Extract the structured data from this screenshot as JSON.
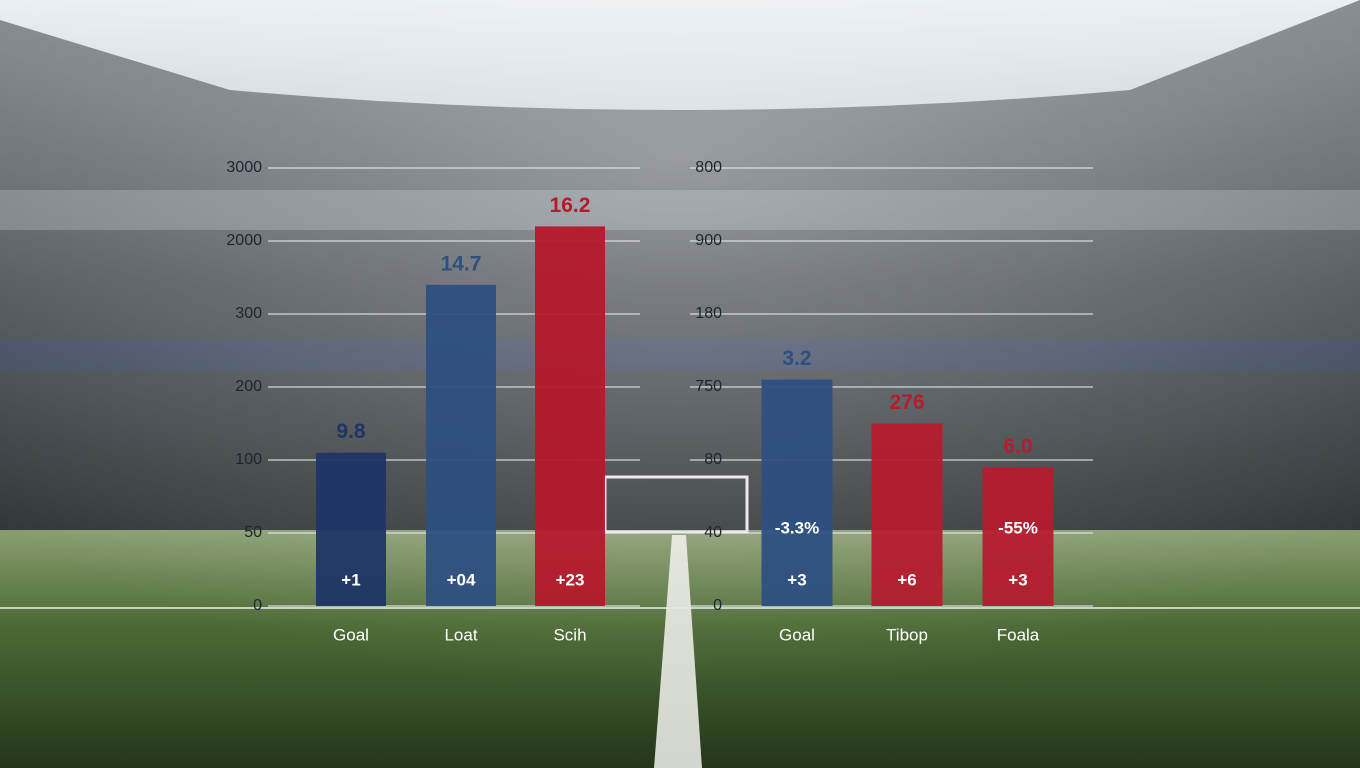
{
  "chart_data": [
    {
      "type": "bar",
      "categories": [
        "Goal",
        "Loat",
        "Scih"
      ],
      "values": [
        2.1,
        4.4,
        5.2
      ],
      "colors": [
        "#1f3566",
        "#2e4f82",
        "#b5192b"
      ],
      "top_labels": [
        "9.8",
        "14.7",
        "16.2"
      ],
      "inner_labels": [
        "+1",
        "+04",
        "+23"
      ],
      "ylim": [
        0,
        6
      ],
      "yticks": [
        {
          "value": 0,
          "label": "0"
        },
        {
          "value": 1,
          "label": "50"
        },
        {
          "value": 2,
          "label": "100"
        },
        {
          "value": 3,
          "label": "200"
        },
        {
          "value": 4,
          "label": "300"
        },
        {
          "value": 5,
          "label": "2000"
        },
        {
          "value": 6,
          "label": "3000"
        }
      ],
      "grid": true
    },
    {
      "type": "bar",
      "categories": [
        "Goal",
        "Tibop",
        "Foala"
      ],
      "values": [
        3.1,
        2.5,
        1.9
      ],
      "colors": [
        "#2e4f82",
        "#b51c2e",
        "#b51c2e"
      ],
      "top_labels": [
        "3.2",
        "276",
        "6.0"
      ],
      "mid_labels": [
        "-3.3%",
        null,
        "-55%"
      ],
      "inner_labels": [
        "+3",
        "+6",
        "+3"
      ],
      "ylim": [
        0,
        6
      ],
      "yticks": [
        {
          "value": 0,
          "label": "0"
        },
        {
          "value": 1,
          "label": "40"
        },
        {
          "value": 2,
          "label": "80"
        },
        {
          "value": 3,
          "label": "750"
        },
        {
          "value": 4,
          "label": "180"
        },
        {
          "value": 5,
          "label": "900"
        },
        {
          "value": 6,
          "label": "800"
        }
      ],
      "grid": true
    }
  ]
}
